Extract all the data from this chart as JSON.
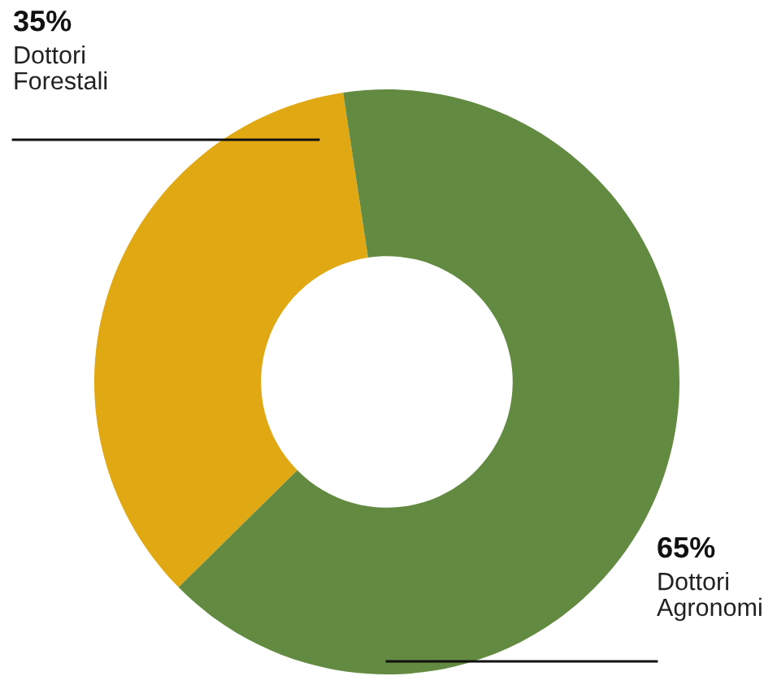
{
  "chart_data": {
    "type": "donut",
    "categories": [
      "Dottori Forestali",
      "Dottori Agronomi"
    ],
    "values": [
      35,
      65
    ],
    "colors": [
      "#e0a812",
      "#628a40"
    ],
    "value_labels": [
      "35%",
      "65%"
    ]
  }
}
